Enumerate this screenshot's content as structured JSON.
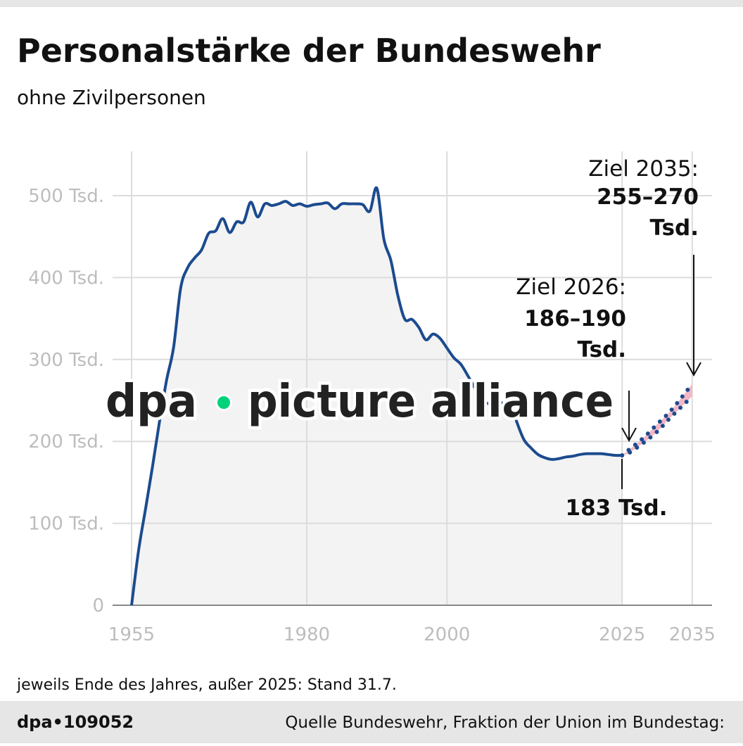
{
  "title": "Personalstärke der Bundeswehr",
  "subtitle": "ohne Zivilpersonen",
  "footnote": "jeweils Ende des Jahres, außer 2025: Stand 31.7.",
  "footer": {
    "id": "dpa•109052",
    "source": "Quelle Bundeswehr, Fraktion der Union im Bundestag:"
  },
  "watermark": "dpa • picture alliance",
  "colors": {
    "line": "#1b4b8f",
    "area": "#f3f3f3",
    "band": "#f2b8c6",
    "grid": "#dcdcdc",
    "watermark_dot": "#00d27a"
  },
  "chart_data": {
    "type": "area",
    "title": "Personalstärke der Bundeswehr",
    "subtitle": "ohne Zivilpersonen",
    "unit": "Tsd.",
    "xlim": [
      1955,
      2035
    ],
    "ylim": [
      0,
      550
    ],
    "x_ticks": [
      "1955",
      "1980",
      "2000",
      "2025",
      "2035"
    ],
    "y_ticks": [
      "0",
      "100 Tsd.",
      "200 Tsd.",
      "300 Tsd.",
      "400 Tsd.",
      "500 Tsd."
    ],
    "grid": true,
    "series": [
      {
        "x": [
          1955,
          1956,
          1957,
          1958,
          1959,
          1960,
          1961,
          1962,
          1963,
          1964,
          1965,
          1966,
          1967,
          1968,
          1969,
          1970,
          1971,
          1972,
          1973,
          1974,
          1975,
          1976,
          1977,
          1978,
          1979,
          1980,
          1981,
          1982,
          1983,
          1984,
          1985,
          1986,
          1987,
          1988,
          1989,
          1990,
          1991,
          1992,
          1993,
          1994,
          1995,
          1996,
          1997,
          1998,
          1999,
          2000,
          2001,
          2002,
          2003,
          2004,
          2005,
          2006,
          2007,
          2008,
          2009,
          2010,
          2011,
          2012,
          2013,
          2014,
          2015,
          2016,
          2017,
          2018,
          2019,
          2020,
          2021,
          2022,
          2023,
          2024,
          2025
        ],
        "values": [
          0,
          67,
          118,
          170,
          225,
          275,
          315,
          387,
          412,
          424,
          434,
          454,
          457,
          472,
          455,
          468,
          468,
          492,
          474,
          490,
          488,
          490,
          493,
          488,
          490,
          487,
          489,
          490,
          491,
          484,
          490,
          490,
          490,
          489,
          481,
          509,
          447,
          421,
          378,
          349,
          349,
          339,
          324,
          331,
          326,
          314,
          302,
          294,
          280,
          265,
          250,
          246,
          245,
          247,
          248,
          223,
          202,
          192,
          184,
          180,
          178,
          179,
          181,
          182,
          184,
          185,
          185,
          185,
          184,
          183,
          183
        ]
      }
    ],
    "projection": {
      "x": [
        2025,
        2026,
        2028,
        2030,
        2032,
        2035
      ],
      "lower": [
        183,
        186,
        198,
        212,
        230,
        255
      ],
      "upper": [
        183,
        190,
        204,
        221,
        238,
        270
      ]
    },
    "annotations": [
      {
        "label": "Ziel 2035:",
        "value": "255–270",
        "unit": "Tsd."
      },
      {
        "label": "Ziel 2026:",
        "value": "186–190",
        "unit": "Tsd."
      },
      {
        "value": "183 Tsd."
      }
    ]
  }
}
